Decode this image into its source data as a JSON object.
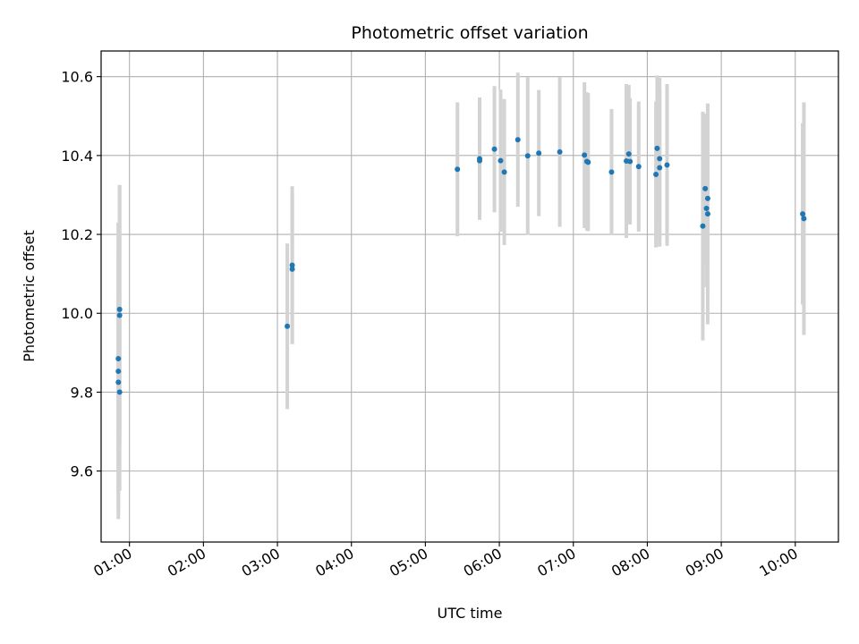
{
  "chart_data": {
    "type": "scatter",
    "title": "Photometric offset variation",
    "xlabel": "UTC time",
    "ylabel": "Photometric offset",
    "xlim": [
      "00:37",
      "10:35"
    ],
    "ylim": [
      9.42,
      10.665
    ],
    "x_ticks": [
      "01:00",
      "02:00",
      "03:00",
      "04:00",
      "05:00",
      "06:00",
      "07:00",
      "08:00",
      "09:00",
      "10:00"
    ],
    "y_ticks": [
      9.6,
      9.8,
      10.0,
      10.2,
      10.4,
      10.6
    ],
    "y_tick_labels": [
      "9.6",
      "9.8",
      "10.0",
      "10.2",
      "10.4",
      "10.6"
    ],
    "grid": true,
    "colors": {
      "marker": "#1f77b4",
      "errorbar": "#d3d3d3",
      "grid": "#b0b0b0",
      "axes": "#000000"
    },
    "series": [
      {
        "points": [
          {
            "x": "00:51",
            "y": 9.885,
            "err": 0.345
          },
          {
            "x": "00:51",
            "y": 9.853,
            "err": 0.375
          },
          {
            "x": "00:51",
            "y": 9.825,
            "err": 0.33
          },
          {
            "x": "00:52",
            "y": 9.8,
            "err": 0.25
          },
          {
            "x": "00:52",
            "y": 10.01,
            "err": 0.315
          },
          {
            "x": "00:52",
            "y": 9.995,
            "err": 0.33
          },
          {
            "x": "03:08",
            "y": 9.967,
            "err": 0.21
          },
          {
            "x": "03:12",
            "y": 10.122,
            "err": 0.2
          },
          {
            "x": "03:12",
            "y": 10.112,
            "err": 0.19
          },
          {
            "x": "05:26",
            "y": 10.365,
            "err": 0.17
          },
          {
            "x": "05:44",
            "y": 10.392,
            "err": 0.155
          },
          {
            "x": "05:44",
            "y": 10.387,
            "err": 0.15
          },
          {
            "x": "05:56",
            "y": 10.416,
            "err": 0.16
          },
          {
            "x": "06:01",
            "y": 10.387,
            "err": 0.18
          },
          {
            "x": "06:04",
            "y": 10.358,
            "err": 0.185
          },
          {
            "x": "06:15",
            "y": 10.44,
            "err": 0.17
          },
          {
            "x": "06:23",
            "y": 10.399,
            "err": 0.2
          },
          {
            "x": "06:32",
            "y": 10.406,
            "err": 0.16
          },
          {
            "x": "06:49",
            "y": 10.409,
            "err": 0.19
          },
          {
            "x": "07:09",
            "y": 10.401,
            "err": 0.185
          },
          {
            "x": "07:11",
            "y": 10.385,
            "err": 0.175
          },
          {
            "x": "07:12",
            "y": 10.383,
            "err": 0.175
          },
          {
            "x": "07:31",
            "y": 10.358,
            "err": 0.16
          },
          {
            "x": "07:43",
            "y": 10.386,
            "err": 0.195
          },
          {
            "x": "07:45",
            "y": 10.404,
            "err": 0.175
          },
          {
            "x": "07:46",
            "y": 10.385,
            "err": 0.16
          },
          {
            "x": "07:53",
            "y": 10.372,
            "err": 0.165
          },
          {
            "x": "08:07",
            "y": 10.352,
            "err": 0.185
          },
          {
            "x": "08:08",
            "y": 10.418,
            "err": 0.185
          },
          {
            "x": "08:10",
            "y": 10.392,
            "err": 0.205
          },
          {
            "x": "08:10",
            "y": 10.369,
            "err": 0.2
          },
          {
            "x": "08:16",
            "y": 10.376,
            "err": 0.205
          },
          {
            "x": "08:45",
            "y": 10.221,
            "err": 0.29
          },
          {
            "x": "08:47",
            "y": 10.316,
            "err": 0.19
          },
          {
            "x": "08:48",
            "y": 10.266,
            "err": 0.2
          },
          {
            "x": "08:49",
            "y": 10.291,
            "err": 0.24
          },
          {
            "x": "08:49",
            "y": 10.252,
            "err": 0.28
          },
          {
            "x": "10:06",
            "y": 10.252,
            "err": 0.23
          },
          {
            "x": "10:07",
            "y": 10.24,
            "err": 0.295
          }
        ]
      }
    ]
  }
}
